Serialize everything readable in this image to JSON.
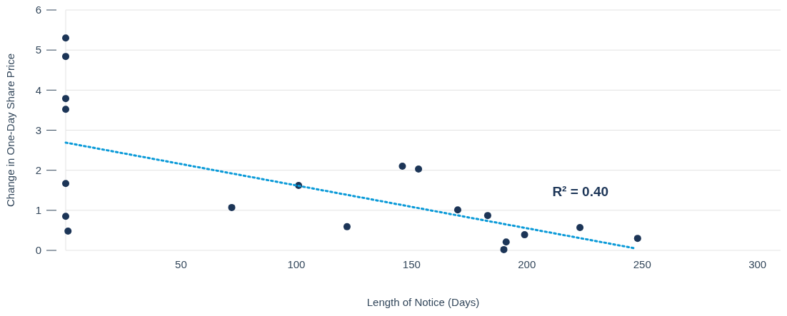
{
  "chart_data": {
    "type": "scatter",
    "xlabel": "Length of Notice (Days)",
    "ylabel": "Change in One-Day Share Price",
    "xlim": [
      0,
      310
    ],
    "xticks": [
      50,
      100,
      150,
      200,
      250,
      300
    ],
    "ylim": [
      0,
      6
    ],
    "yticks": [
      0,
      1,
      2,
      3,
      4,
      5,
      6
    ],
    "grid": "y",
    "marker": "circle",
    "series": [
      {
        "color": "#1c3557",
        "x": [
          0,
          0,
          0,
          0,
          0,
          0,
          1,
          72,
          101,
          122,
          146,
          153,
          170,
          183,
          190,
          191,
          199,
          223,
          248
        ],
        "values": [
          5.3,
          4.84,
          3.79,
          3.52,
          1.67,
          0.85,
          0.48,
          1.07,
          1.62,
          0.59,
          2.1,
          2.03,
          1.01,
          0.87,
          0.02,
          0.21,
          0.39,
          0.57,
          0.3
        ]
      },
      {
        "type": "line",
        "marker": "none",
        "color": "#0a9ad8",
        "line_style": "dotted",
        "x": [
          0,
          247
        ],
        "values": [
          2.69,
          0.05
        ]
      }
    ],
    "annotations": [
      "R² = 0.40"
    ]
  }
}
